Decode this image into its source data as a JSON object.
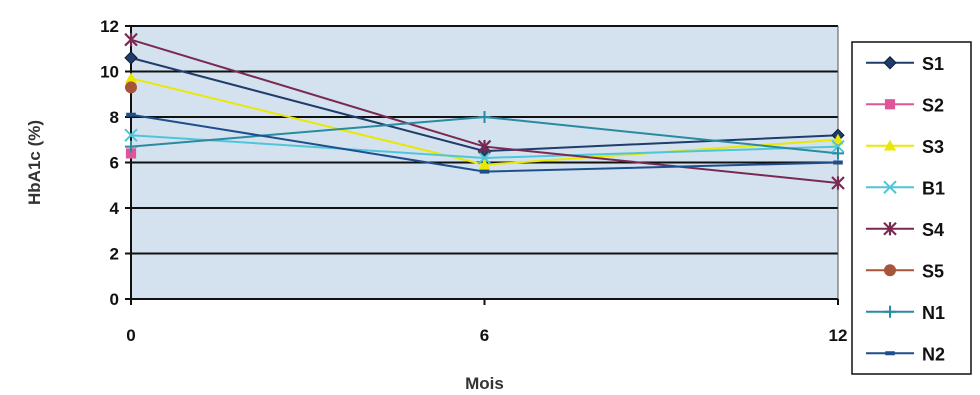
{
  "chart_data": {
    "type": "line",
    "title": "",
    "xlabel": "Mois",
    "ylabel": "HbA1c (%)",
    "x": [
      0,
      6,
      12
    ],
    "x_tick_labels": [
      "0",
      "6",
      "12"
    ],
    "ylim": [
      0,
      12
    ],
    "y_ticks": [
      0,
      2,
      4,
      6,
      8,
      10,
      12
    ],
    "y_tick_labels": [
      "0",
      "2",
      "4",
      "6",
      "8",
      "10",
      "12"
    ],
    "grid": true,
    "legend_position": "right",
    "plot_background": "#d4e2ef",
    "series": [
      {
        "name": "S1",
        "values": [
          10.6,
          6.5,
          7.2
        ],
        "color": "#1f3d6b",
        "marker": "diamond"
      },
      {
        "name": "S2",
        "values": [
          6.4,
          null,
          null
        ],
        "color": "#e0559a",
        "marker": "square"
      },
      {
        "name": "S3",
        "values": [
          9.7,
          5.9,
          7.0
        ],
        "color": "#e8e800",
        "marker": "triangle"
      },
      {
        "name": "B1",
        "values": [
          7.2,
          6.2,
          6.7
        ],
        "color": "#4fc6d8",
        "marker": "x"
      },
      {
        "name": "S4",
        "values": [
          11.4,
          6.7,
          5.1
        ],
        "color": "#7a2a52",
        "marker": "star"
      },
      {
        "name": "S5",
        "values": [
          9.3,
          null,
          null
        ],
        "color": "#a5553a",
        "marker": "circle"
      },
      {
        "name": "N1",
        "values": [
          6.7,
          8.0,
          6.4
        ],
        "color": "#2a8aa0",
        "marker": "plus"
      },
      {
        "name": "N2",
        "values": [
          8.1,
          5.6,
          6.0
        ],
        "color": "#1e4f8c",
        "marker": "dash"
      }
    ]
  }
}
